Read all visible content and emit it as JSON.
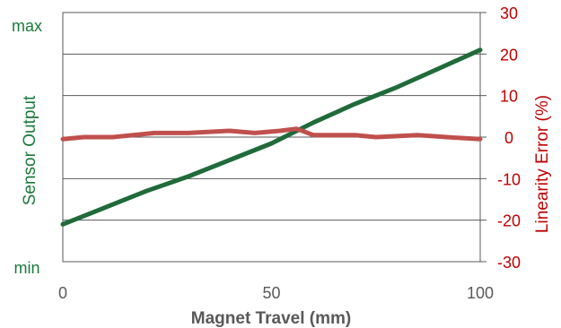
{
  "chart_data": {
    "type": "line",
    "title": "",
    "xlabel": "Magnet Travel  (mm)",
    "ylabel_left": "Sensor Output",
    "ylabel_right": "Linearity Error (%)",
    "xlim": [
      0,
      100
    ],
    "x_ticks": [
      "0",
      "50",
      "100"
    ],
    "left_ticks": [
      "max",
      "min"
    ],
    "right_ylim": [
      -30,
      30
    ],
    "right_ticks": [
      "30",
      "20",
      "10",
      "0",
      "-10",
      "-20",
      "-30"
    ],
    "grid": "horizontal",
    "legend": "none",
    "series": [
      {
        "name": "Sensor Output",
        "axis": "left",
        "color": "#1f6b3a",
        "x": [
          0,
          10,
          20,
          30,
          40,
          50,
          60,
          70,
          80,
          90,
          100
        ],
        "y": [
          -21,
          -17,
          -13,
          -9.5,
          -5.5,
          -1.5,
          3.5,
          8,
          12,
          16.5,
          21
        ]
      },
      {
        "name": "Linearity Error (%)",
        "axis": "right",
        "color": "#c0504d",
        "x": [
          0,
          5,
          12,
          22,
          30,
          40,
          46,
          52,
          56,
          60,
          70,
          75,
          85,
          92,
          100
        ],
        "y": [
          -0.5,
          0,
          0,
          1,
          1,
          1.5,
          1,
          1.5,
          2,
          0.5,
          0.5,
          0,
          0.5,
          0,
          -0.5
        ]
      }
    ],
    "colors": {
      "left_axis": "#1a7a3a",
      "right_axis": "#c00000",
      "x_axis": "#595959"
    }
  }
}
